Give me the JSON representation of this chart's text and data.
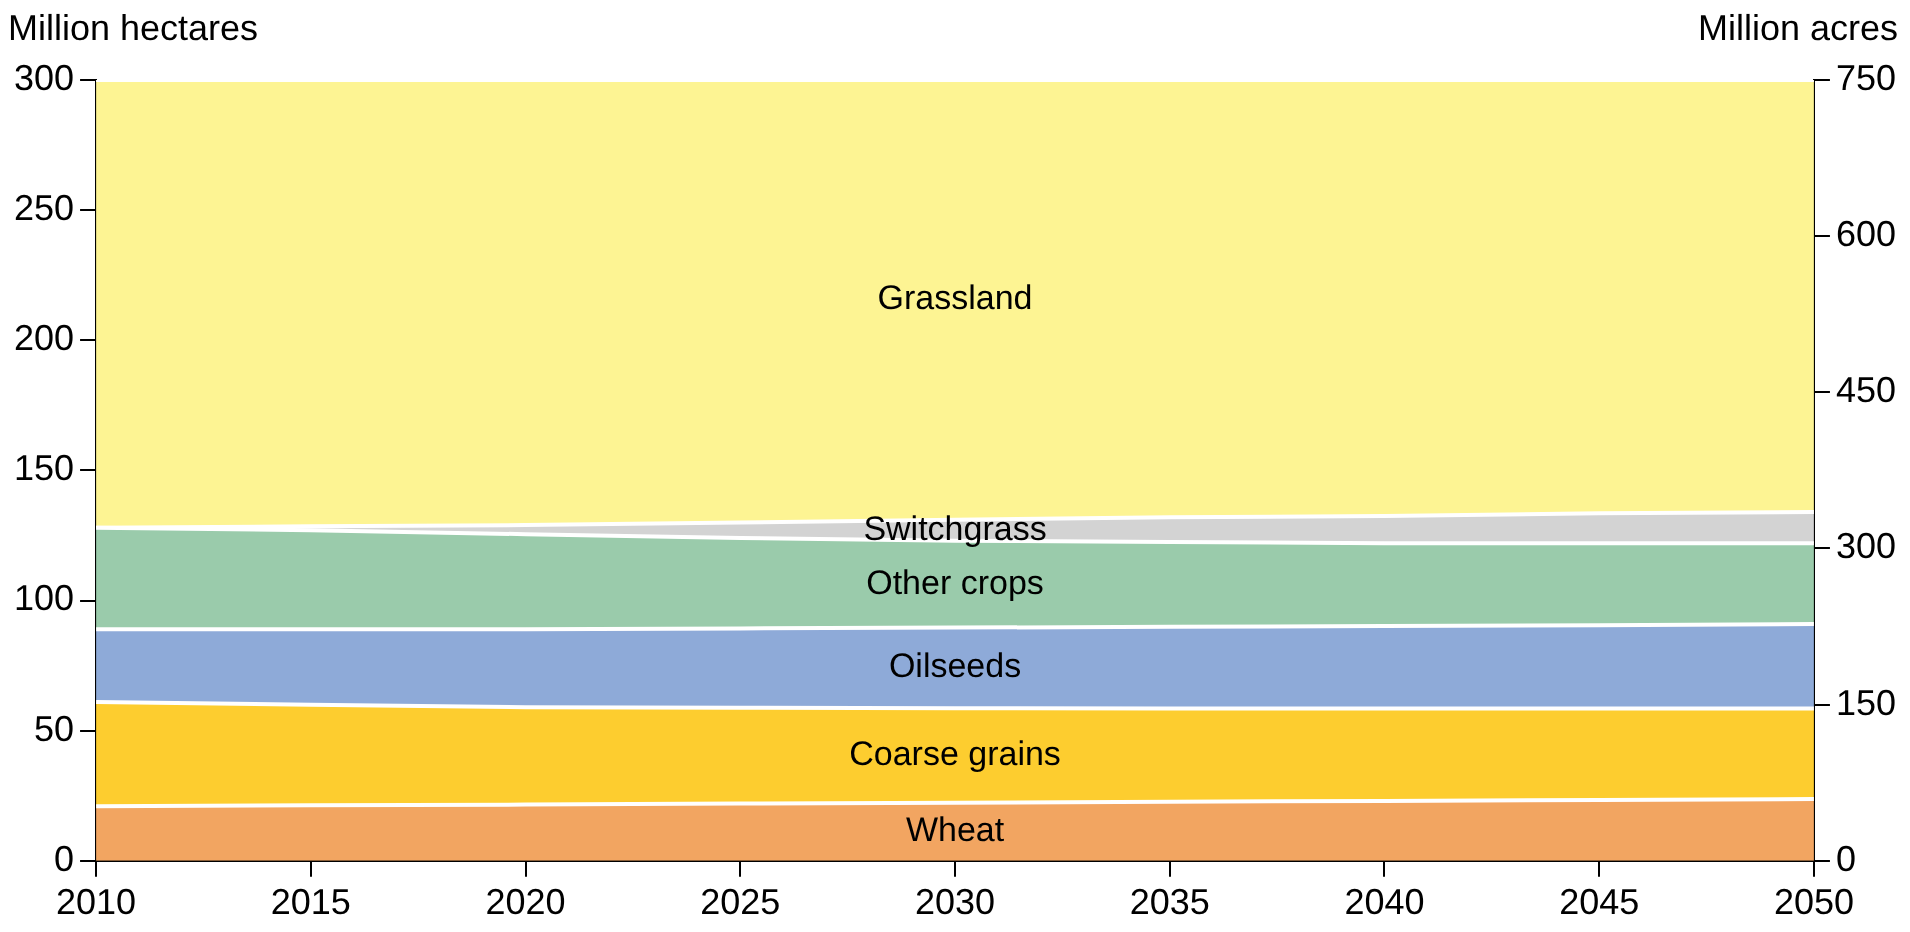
{
  "chart_data": {
    "type": "area",
    "stacked": true,
    "ylabel": "Million hectares",
    "y2label": "Million acres",
    "x": [
      2010,
      2015,
      2020,
      2025,
      2030,
      2035,
      2040,
      2045,
      2050
    ],
    "series": [
      {
        "name": "Wheat",
        "color": "#f2a561",
        "values": [
          21,
          21.3,
          21.6,
          22,
          22.3,
          22.7,
          23,
          23.4,
          23.7
        ]
      },
      {
        "name": "Coarse grains",
        "color": "#fdcd2f",
        "values": [
          40,
          38.7,
          37.4,
          36.8,
          36.3,
          35.8,
          35.5,
          35.1,
          34.8
        ]
      },
      {
        "name": "Oilseeds",
        "color": "#8eaad8",
        "values": [
          28,
          29,
          30,
          30.5,
          31,
          31.4,
          31.7,
          32,
          32.5
        ]
      },
      {
        "name": "Other crops",
        "color": "#9acbab",
        "values": [
          39,
          38,
          36.5,
          34.7,
          33.4,
          32.6,
          31.8,
          31.5,
          31
        ]
      },
      {
        "name": "Switchgrass",
        "color": "#d3d3d3",
        "values": [
          0,
          1.5,
          3.5,
          6,
          8,
          9.5,
          10.5,
          11.5,
          12
        ]
      },
      {
        "name": "Grassland",
        "color": "#fdf493",
        "values": [
          172,
          171.5,
          171,
          170,
          169,
          168,
          167.5,
          166.5,
          166
        ]
      }
    ],
    "xlim": [
      2010,
      2050
    ],
    "xticks": [
      2010,
      2015,
      2020,
      2025,
      2030,
      2035,
      2040,
      2045,
      2050
    ],
    "ylim": [
      0,
      300
    ],
    "yticks": [
      0,
      50,
      100,
      150,
      200,
      250,
      300
    ],
    "y2lim": [
      0,
      750
    ],
    "y2ticks": [
      0,
      150,
      300,
      450,
      600,
      750
    ],
    "grid": false,
    "legend": false
  }
}
